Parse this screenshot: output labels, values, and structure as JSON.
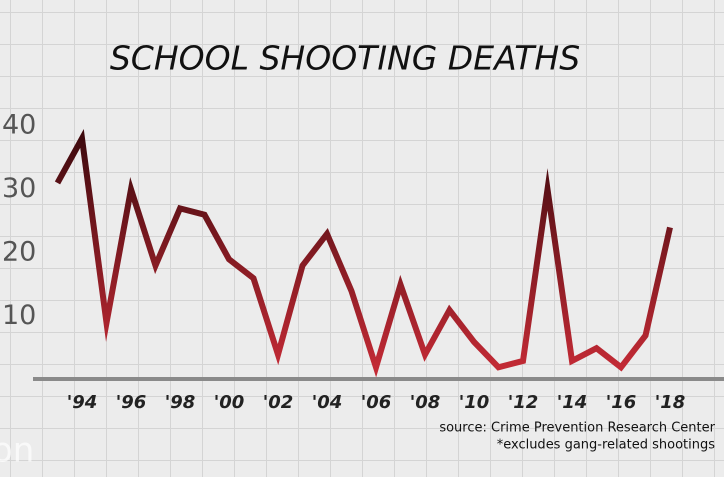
{
  "chart_data": {
    "type": "line",
    "title": "SCHOOL SHOOTING DEATHS",
    "x": [
      1993,
      1994,
      1995,
      1996,
      1997,
      1998,
      1999,
      2000,
      2001,
      2002,
      2003,
      2004,
      2005,
      2006,
      2007,
      2008,
      2009,
      2010,
      2011,
      2012,
      2013,
      2014,
      2015,
      2016,
      2017,
      2018
    ],
    "series": [
      {
        "name": "School shooting deaths",
        "color": "#c22a35",
        "values": [
          31,
          38,
          9,
          30,
          18,
          27,
          26,
          19,
          16,
          4,
          18,
          23,
          14,
          2,
          15,
          4,
          11,
          6,
          2,
          3,
          30,
          3,
          5,
          2,
          7,
          24
        ]
      }
    ],
    "xlim": [
      1992,
      2020
    ],
    "xticks": [
      {
        "value": 1994,
        "label": "'94"
      },
      {
        "value": 1996,
        "label": "'96"
      },
      {
        "value": 1998,
        "label": "'98"
      },
      {
        "value": 2000,
        "label": "'00"
      },
      {
        "value": 2002,
        "label": "'02"
      },
      {
        "value": 2004,
        "label": "'04"
      },
      {
        "value": 2006,
        "label": "'06"
      },
      {
        "value": 2008,
        "label": "'08"
      },
      {
        "value": 2010,
        "label": "'10"
      },
      {
        "value": 2012,
        "label": "'12"
      },
      {
        "value": 2014,
        "label": "'14"
      },
      {
        "value": 2016,
        "label": "'16"
      },
      {
        "value": 2018,
        "label": "'18"
      }
    ],
    "ylim": [
      0,
      45
    ],
    "yticks": [
      10,
      20,
      30,
      40
    ],
    "source": "source:  Crime Prevention Research Center",
    "note": "*excludes gang-related shootings",
    "watermark": "on"
  }
}
